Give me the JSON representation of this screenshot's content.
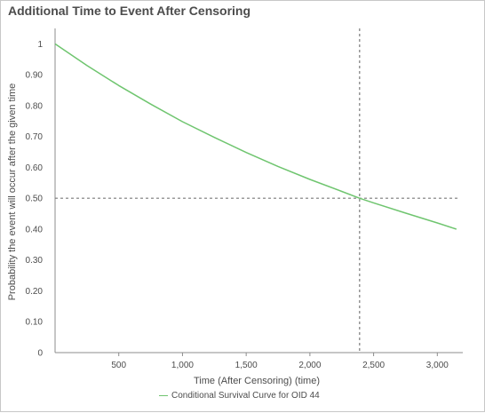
{
  "title": "Additional Time to Event After Censoring",
  "chart_data": {
    "type": "line",
    "title": "Additional Time to Event After Censoring",
    "xlabel": "Time (After Censoring) (time)",
    "ylabel": "Probability the event will occur after the given time",
    "xlim": [
      0,
      3200
    ],
    "ylim": [
      0,
      1.05
    ],
    "x_ticks": [
      500,
      1000,
      1500,
      2000,
      2500,
      3000
    ],
    "x_tick_labels": [
      "500",
      "1,000",
      "1,500",
      "2,000",
      "2,500",
      "3,000"
    ],
    "y_ticks": [
      0,
      0.1,
      0.2,
      0.3,
      0.4,
      0.5,
      0.6,
      0.7,
      0.8,
      0.9,
      1
    ],
    "y_tick_labels": [
      "0",
      "0.10",
      "0.20",
      "0.30",
      "0.40",
      "0.50",
      "0.60",
      "0.70",
      "0.80",
      "0.90",
      "1"
    ],
    "grid": false,
    "legend_position": "bottom",
    "series": [
      {
        "name": "Conditional Survival Curve for OID 44",
        "color": "#6fc56f",
        "x": [
          0,
          250,
          500,
          750,
          1000,
          1250,
          1500,
          1750,
          2000,
          2250,
          2390,
          2500,
          2750,
          3000,
          3150
        ],
        "y": [
          1.0,
          0.93,
          0.865,
          0.805,
          0.748,
          0.697,
          0.648,
          0.603,
          0.561,
          0.522,
          0.5,
          0.485,
          0.452,
          0.42,
          0.4
        ]
      }
    ],
    "reference_lines": [
      {
        "axis": "y",
        "value": 0.5,
        "style": "dashed",
        "color": "#7a7a7a"
      },
      {
        "axis": "x",
        "value": 2390,
        "style": "dashed",
        "color": "#7a7a7a"
      }
    ]
  }
}
